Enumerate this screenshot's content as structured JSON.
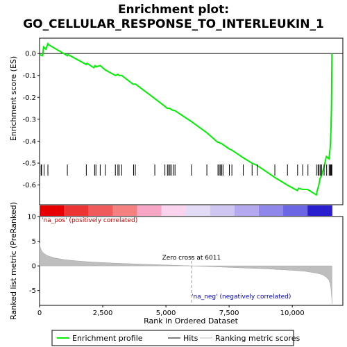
{
  "chart_data": {
    "type": "line",
    "title_line1": "Enrichment plot:",
    "title_line2": "GO_CELLULAR_RESPONSE_TO_INTERLEUKIN_1",
    "top_panel": {
      "ylabel": "Enrichment score (ES)",
      "ylim": [
        -0.69,
        0.07
      ],
      "yticks": [
        0.0,
        -0.1,
        -0.2,
        -0.3,
        -0.4,
        -0.5,
        -0.6
      ],
      "ytick_labels": [
        "0.0",
        "-0.1",
        "-0.2",
        "-0.3",
        "-0.4",
        "-0.5",
        "-0.6"
      ],
      "series": [
        {
          "name": "Enrichment profile",
          "color": "#00ee00",
          "x": [
            0,
            120,
            160,
            250,
            330,
            360,
            1100,
            1130,
            1850,
            1880,
            2150,
            2200,
            2250,
            2400,
            2600,
            3000,
            3100,
            3150,
            3250,
            3700,
            3800,
            4550,
            4950,
            5050,
            5100,
            5150,
            5200,
            5300,
            5350,
            6000,
            6600,
            7050,
            7100,
            7150,
            7200,
            7250,
            7500,
            7600,
            8050,
            8400,
            8600,
            9300,
            9800,
            10200,
            10250,
            10400,
            10450,
            10600,
            10950,
            11000,
            11050,
            11100,
            11150,
            11250,
            11350,
            11450,
            11500,
            11530,
            11540,
            11550,
            11555,
            11560,
            11565,
            11570
          ],
          "y": [
            -0.005,
            -0.01,
            0.03,
            0.02,
            0.045,
            0.04,
            -0.01,
            -0.005,
            -0.05,
            -0.045,
            -0.065,
            -0.055,
            -0.06,
            -0.055,
            -0.075,
            -0.1,
            -0.095,
            -0.1,
            -0.1,
            -0.14,
            -0.14,
            -0.205,
            -0.24,
            -0.25,
            -0.25,
            -0.25,
            -0.255,
            -0.26,
            -0.26,
            -0.31,
            -0.36,
            -0.405,
            -0.405,
            -0.41,
            -0.41,
            -0.415,
            -0.435,
            -0.44,
            -0.475,
            -0.5,
            -0.51,
            -0.565,
            -0.6,
            -0.625,
            -0.615,
            -0.62,
            -0.62,
            -0.62,
            -0.645,
            -0.62,
            -0.6,
            -0.57,
            -0.56,
            -0.52,
            -0.47,
            -0.48,
            -0.43,
            -0.35,
            -0.3,
            -0.25,
            -0.2,
            -0.1,
            -0.05,
            0.0
          ]
        }
      ]
    },
    "hits_panel": {
      "hit_ranks": [
        60,
        80,
        180,
        330,
        1100,
        1850,
        2180,
        2230,
        2400,
        2600,
        3000,
        3100,
        3150,
        3250,
        3720,
        3790,
        4560,
        4960,
        5060,
        5110,
        5160,
        5210,
        5290,
        5360,
        6010,
        6620,
        7060,
        7110,
        7160,
        7210,
        7260,
        7510,
        7610,
        8060,
        8410,
        8620,
        9310,
        9810,
        10210,
        10410,
        10620,
        10960,
        11020,
        11060,
        11110,
        11160,
        11260,
        11360,
        11460,
        11500,
        11520,
        11540,
        11555,
        11565
      ],
      "ranking_colors": [
        "#e60000",
        "#ee3333",
        "#f05a5a",
        "#f48080",
        "#f8a6c6",
        "#fad3ef",
        "#e4dcf6",
        "#cfc6f2",
        "#b4a9ee",
        "#8f88ea",
        "#6a66e4",
        "#2a1fcf"
      ],
      "pos_label": "'na_pos' (positively correlated)",
      "neg_label": "'na_neg' (negatively correlated)"
    },
    "bottom_panel": {
      "ylabel": "Ranked list metric (PreRanked)",
      "xlabel": "Rank in Ordered Dataset",
      "ylim": [
        -8,
        10
      ],
      "yticks": [
        10,
        5,
        0,
        -5
      ],
      "ytick_labels": [
        "10",
        "5",
        "0",
        "-5"
      ],
      "xlim": [
        0,
        12000
      ],
      "xticks": [
        0,
        2500,
        5000,
        7500,
        10000
      ],
      "xtick_labels": [
        "0",
        "2,500",
        "5,000",
        "7,500",
        "10,000"
      ],
      "zero_cross_label": "Zero cross at 6011",
      "zero_cross_rank": 6011,
      "metric_x": [
        0,
        30,
        80,
        150,
        300,
        600,
        1000,
        1500,
        2000,
        3000,
        4000,
        5000,
        6011,
        7000,
        8000,
        9000,
        10000,
        10500,
        11000,
        11200,
        11350,
        11450,
        11500,
        11530,
        11560,
        11570
      ],
      "metric_y": [
        4.6,
        3.7,
        3.1,
        2.6,
        2.1,
        1.6,
        1.25,
        1.0,
        0.8,
        0.55,
        0.35,
        0.18,
        0.0,
        -0.2,
        -0.4,
        -0.6,
        -0.9,
        -1.1,
        -1.5,
        -1.8,
        -2.3,
        -2.9,
        -3.6,
        -4.6,
        -6.5,
        -7.7
      ],
      "fill_color": "#bebebe"
    },
    "legend": {
      "items": [
        {
          "label": "Enrichment profile",
          "color": "#00ee00"
        },
        {
          "label": "Hits",
          "color": "#000000"
        },
        {
          "label": "Ranking metric scores",
          "color": "#bebebe"
        }
      ]
    }
  }
}
